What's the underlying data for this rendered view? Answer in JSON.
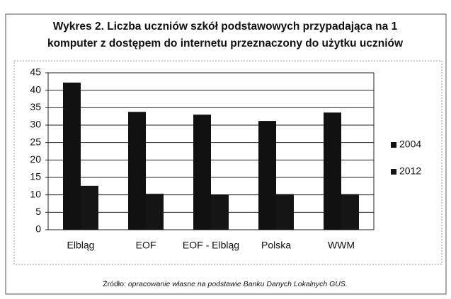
{
  "chart_data": {
    "type": "bar",
    "title": [
      "Wykres 2. Liczba uczniów szkół podstawowych przypadająca na 1",
      "komputer z dostępem do internetu przeznaczony do użytku uczniów"
    ],
    "categories": [
      "Elbląg",
      "EOF",
      "EOF - Elbląg",
      "Polska",
      "WWM"
    ],
    "series": [
      {
        "name": "2004",
        "color": "#111111",
        "values": [
          42.2,
          33.8,
          33,
          31.2,
          33.6
        ]
      },
      {
        "name": "2012",
        "color": "#151515",
        "values": [
          12.6,
          10.3,
          10.1,
          10.2,
          10.2
        ]
      }
    ],
    "ylim": [
      0,
      45
    ],
    "yticks": [
      0,
      5,
      10,
      15,
      20,
      25,
      30,
      35,
      40,
      45
    ],
    "grid": true,
    "legend": "right",
    "source_label": "Źródło:",
    "source": "opracowanie własne na podstawie Banku Danych Lokalnych GUS."
  }
}
